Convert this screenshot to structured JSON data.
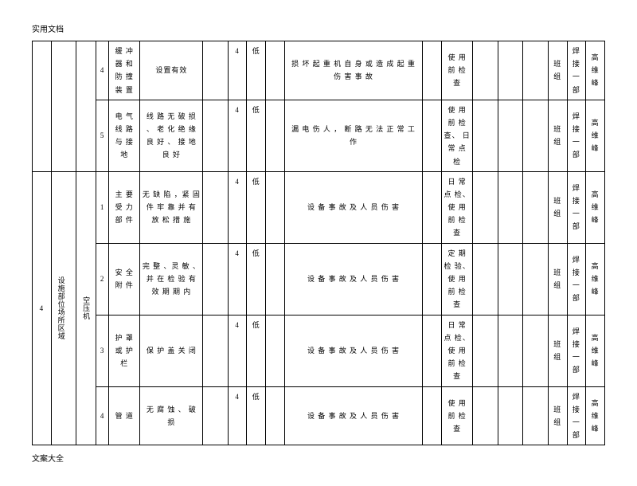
{
  "header": "实用文档",
  "footer": "文案大全",
  "seq": "4",
  "cat": "设施部位场所区域",
  "mac": "空压机",
  "rows": [
    {
      "n": "4",
      "part": "缓 冲 器 和 防 撞 装 置",
      "cond": "设置有效",
      "score": "4",
      "lvl": "低",
      "desc": "损 坏 起 重 机 自 身 或 造 成 起 重 伤 害 事 故",
      "ctrl": "使 用 前 检 查",
      "u": "班 组",
      "d": "焊接 一部",
      "p": "高 维 峰"
    },
    {
      "n": "5",
      "part": "电 气 线 路 与 接 地",
      "cond": "线 路 无 破 损 、 老 化 绝 缘 良 好 、 接 地 良 好",
      "score": "4",
      "lvl": "低",
      "desc": "漏 电 伤 人 ， 断 路 无 法 正 常 工 作",
      "ctrl": "使 用 前 检 查、 日 常 点 检",
      "u": "班 组",
      "d": "焊接 一部",
      "p": "高 维 峰"
    },
    {
      "n": "1",
      "part": "主 要 受 力 部 件",
      "cond": "无 缺 陷 ，紧 固 件 牢 靠 并 有 放 松 措 施",
      "score": "4",
      "lvl": "低",
      "desc": "设 备 事 故 及 人 员 伤 害",
      "ctrl": "日 常 点 检、 使 用 前 检 查",
      "u": "班 组",
      "d": "焊接 一部",
      "p": "高 维 峰"
    },
    {
      "n": "2",
      "part": "安 全 附 件",
      "cond": "完 整 、灵 敏 、 并 在 检 验 有 效 期 期 内",
      "score": "4",
      "lvl": "低",
      "desc": "设 备 事 故 及 人 员 伤 害",
      "ctrl": "定 期 检 验、 使 用 前 检 查",
      "u": "班 组",
      "d": "焊接 一部",
      "p": "高 维 峰"
    },
    {
      "n": "3",
      "part": "护 罩 或 护 栏",
      "cond": "保 护 盖 关 闭",
      "score": "4",
      "lvl": "低",
      "desc": "设 备 事 故 及 人 员 伤 害",
      "ctrl": "日 常 点 检、 使 用 前 检 查",
      "u": "班 组",
      "d": "焊接 一部",
      "p": "高 维 峰"
    },
    {
      "n": "4",
      "part": "管 道",
      "cond": "无 腐 蚀 、 破 损",
      "score": "4",
      "lvl": "低",
      "desc": "设 备 事 故 及 人 员 伤 害",
      "ctrl": "使 用 前 检 查",
      "u": "班 组",
      "d": "焊接 一部",
      "p": "高 维 峰"
    }
  ],
  "widths": {
    "seq": "3%",
    "cat": "4%",
    "mac": "3%",
    "num": "2%",
    "part": "5%",
    "cond": "10%",
    "empty1": "4%",
    "score": "3%",
    "lvl": "3%",
    "empty2": "3%",
    "desc": "22%",
    "empty3": "3%",
    "ctrl": "5%",
    "empty4": "4%",
    "empty5": "4%",
    "empty6": "4%",
    "unit": "3%",
    "dept": "3%",
    "person": "3%"
  }
}
